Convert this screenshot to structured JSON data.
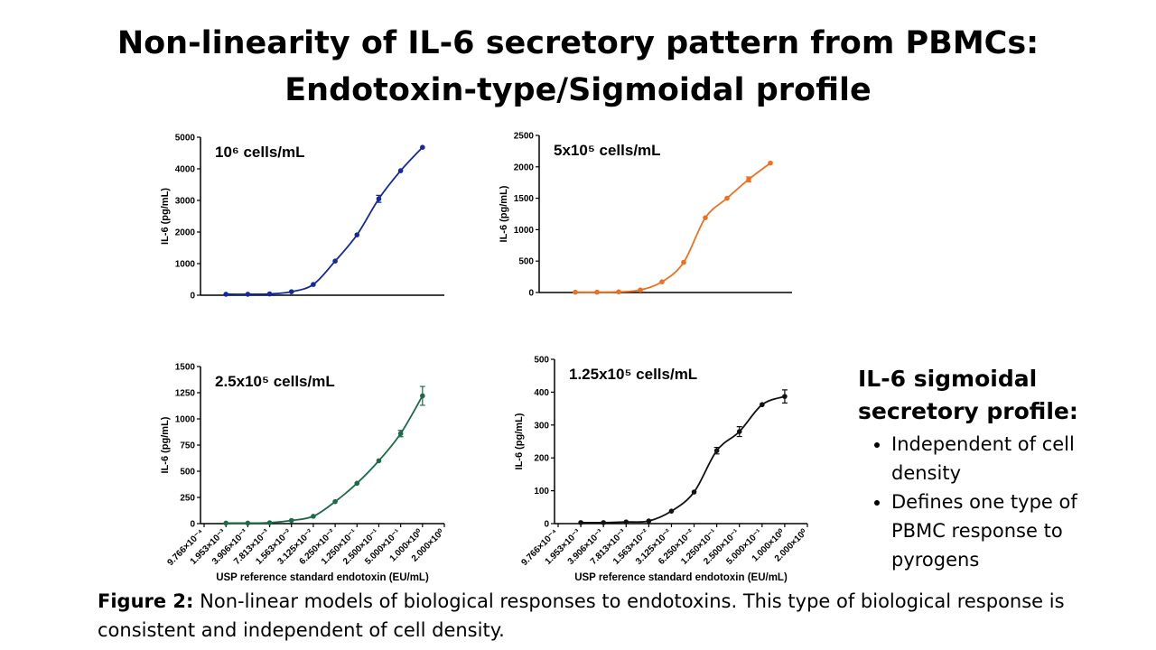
{
  "title": [
    "Non-linearity of IL-6 secretory pattern from PBMCs:",
    "Endotoxin-type/Sigmoidal profile"
  ],
  "chart_data": [
    {
      "type": "line",
      "title": "10⁶ cells/mL",
      "ylabel": "IL-6 (pg/mL)",
      "color": "#1428a0",
      "xscale": "log",
      "x": [
        0.001953,
        0.003906,
        0.007813,
        0.01563,
        0.03125,
        0.0625,
        0.125,
        0.25,
        0.5,
        1.0
      ],
      "values": [
        30,
        30,
        40,
        110,
        340,
        1080,
        1910,
        3050,
        3940,
        4680
      ],
      "errors": [
        null,
        null,
        null,
        null,
        null,
        null,
        null,
        110,
        null,
        null
      ],
      "xlim": [
        0.0009766,
        2.0
      ],
      "ylim": [
        0,
        5000
      ],
      "yticks": [
        0,
        1000,
        2000,
        3000,
        4000,
        5000
      ]
    },
    {
      "type": "line",
      "title": "5x10⁵ cells/mL",
      "ylabel": "IL-6 (pg/mL)",
      "color": "#f07020",
      "xscale": "log",
      "x": [
        0.001953,
        0.003906,
        0.007813,
        0.01563,
        0.03125,
        0.0625,
        0.125,
        0.25,
        0.5,
        1.0
      ],
      "values": [
        5,
        5,
        10,
        40,
        170,
        480,
        1190,
        1500,
        1800,
        2060
      ],
      "errors": [
        null,
        null,
        null,
        null,
        null,
        null,
        null,
        null,
        40,
        null
      ],
      "xlim": [
        0.0009766,
        2.0
      ],
      "ylim": [
        0,
        2500
      ],
      "yticks": [
        0,
        500,
        1000,
        1500,
        2000,
        2500
      ]
    },
    {
      "type": "line",
      "title": "2.5x10⁵ cells/mL",
      "ylabel": "IL-6 (pg/mL)",
      "xlabel": "USP reference standard endotoxin (EU/mL)",
      "color": "#1b6b48",
      "xscale": "log",
      "x": [
        0.001953,
        0.003906,
        0.007813,
        0.01563,
        0.03125,
        0.0625,
        0.125,
        0.25,
        0.5,
        1.0
      ],
      "values": [
        5,
        5,
        8,
        30,
        70,
        210,
        385,
        600,
        860,
        1220
      ],
      "errors": [
        null,
        null,
        null,
        null,
        null,
        null,
        null,
        null,
        30,
        90
      ],
      "xlim": [
        0.0009766,
        2.0
      ],
      "ylim": [
        0,
        1500
      ],
      "yticks": [
        0,
        250,
        500,
        750,
        1000,
        1250,
        1500
      ],
      "xticks": [
        {
          "value": 0.0009766,
          "label": "9.766×10⁻⁴"
        },
        {
          "value": 0.001953,
          "label": "1.953×10⁻³"
        },
        {
          "value": 0.003906,
          "label": "3.906×10⁻³"
        },
        {
          "value": 0.007813,
          "label": "7.813×10⁻³"
        },
        {
          "value": 0.01563,
          "label": "1.563×10⁻²"
        },
        {
          "value": 0.03125,
          "label": "3.125×10⁻²"
        },
        {
          "value": 0.0625,
          "label": "6.250×10⁻²"
        },
        {
          "value": 0.125,
          "label": "1.250×10⁻¹"
        },
        {
          "value": 0.25,
          "label": "2.500×10⁻¹"
        },
        {
          "value": 0.5,
          "label": "5.000×10⁻¹"
        },
        {
          "value": 1.0,
          "label": "1.000×10⁰"
        },
        {
          "value": 2.0,
          "label": "2.000×10⁰"
        }
      ]
    },
    {
      "type": "line",
      "title": "1.25x10⁵ cells/mL",
      "ylabel": "IL-6 (pg/mL)",
      "xlabel": "USP reference standard endotoxin (EU/mL)",
      "color": "#111111",
      "xscale": "log",
      "x": [
        0.001953,
        0.003906,
        0.007813,
        0.01563,
        0.03125,
        0.0625,
        0.125,
        0.25,
        0.5,
        1.0
      ],
      "values": [
        3,
        3,
        5,
        8,
        38,
        96,
        222,
        280,
        362,
        387
      ],
      "errors": [
        null,
        null,
        null,
        null,
        null,
        null,
        10,
        15,
        null,
        20
      ],
      "xlim": [
        0.0009766,
        2.0
      ],
      "ylim": [
        0,
        500
      ],
      "yticks": [
        0,
        100,
        200,
        300,
        400,
        500
      ],
      "xticks": [
        {
          "value": 0.0009766,
          "label": "9.766×10⁻⁴"
        },
        {
          "value": 0.001953,
          "label": "1.953×10⁻³"
        },
        {
          "value": 0.003906,
          "label": "3.906×10⁻³"
        },
        {
          "value": 0.007813,
          "label": "7.813×10⁻³"
        },
        {
          "value": 0.01563,
          "label": "1.563×10⁻²"
        },
        {
          "value": 0.03125,
          "label": "3.125×10⁻²"
        },
        {
          "value": 0.0625,
          "label": "6.250×10⁻²"
        },
        {
          "value": 0.125,
          "label": "1.250×10⁻¹"
        },
        {
          "value": 0.25,
          "label": "2.500×10⁻¹"
        },
        {
          "value": 0.5,
          "label": "5.000×10⁻¹"
        },
        {
          "value": 1.0,
          "label": "1.000×10⁰"
        },
        {
          "value": 2.0,
          "label": "2.000×10⁰"
        }
      ]
    }
  ],
  "sidebar": {
    "heading": [
      "IL-6 sigmoidal",
      "secretory profile:"
    ],
    "bullets": [
      "Independent of cell density",
      "Defines one type of PBMC response to pyrogens"
    ]
  },
  "caption": {
    "label": "Figure 2:",
    "text": "Non-linear models of biological responses to endotoxins. This type of biological response is consistent and independent of cell density."
  }
}
